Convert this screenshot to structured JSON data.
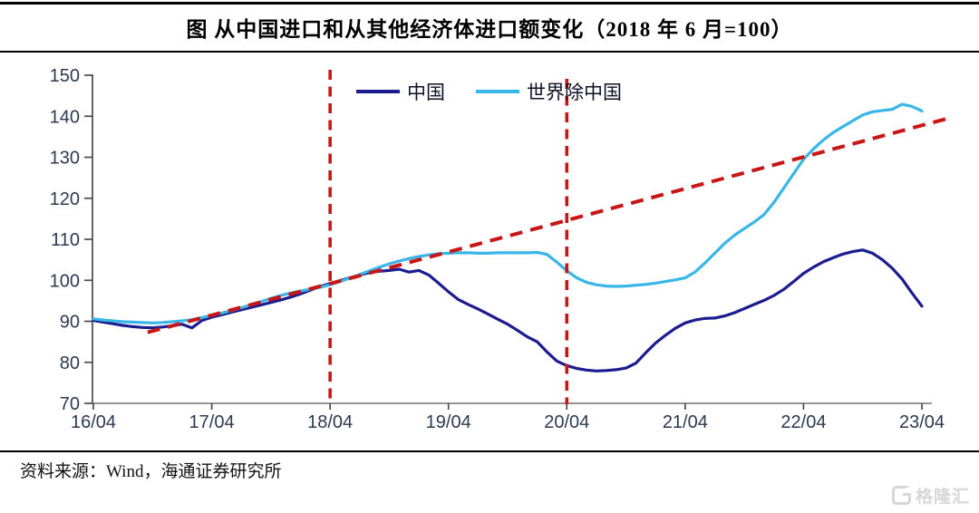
{
  "header": {
    "title": "图 从中国进口和从其他经济体进口额变化（2018 年 6 月=100）"
  },
  "legend": {
    "items": [
      {
        "label": "中国",
        "color": "#1c1c91"
      },
      {
        "label": "世界除中国",
        "color": "#38b6e8"
      }
    ]
  },
  "footer": {
    "source": "资料来源：Wind，海通证券研究所"
  },
  "logo": {
    "mark": "G",
    "text": "格隆汇"
  },
  "chart_data": {
    "type": "line",
    "title": "图 从中国进口和从从其他经济体进口额变化（2018 年 6 月=100）",
    "x_start": "2016/04",
    "x_end": "2023/04",
    "frequency": "monthly",
    "x_tick_labels": [
      "16/04",
      "17/04",
      "18/04",
      "19/04",
      "20/04",
      "21/04",
      "22/04",
      "23/04"
    ],
    "x_tick_indices": [
      0,
      12,
      24,
      36,
      48,
      60,
      72,
      84
    ],
    "y_ticks": [
      70,
      80,
      90,
      100,
      110,
      120,
      130,
      140,
      150
    ],
    "ylim": [
      70,
      150
    ],
    "grid": false,
    "legend_position": "top-center",
    "series": [
      {
        "name": "中国",
        "color": "#1c1c91",
        "values": [
          90.2,
          89.8,
          89.4,
          89.0,
          88.7,
          88.5,
          88.4,
          88.6,
          88.9,
          89.3,
          88.4,
          90.2,
          91.0,
          91.6,
          92.2,
          92.8,
          93.4,
          94.0,
          94.6,
          95.2,
          95.9,
          96.7,
          97.6,
          98.5,
          99.2,
          99.9,
          100.6,
          101.3,
          101.9,
          102.2,
          102.4,
          102.7,
          102.0,
          102.4,
          101.3,
          99.3,
          97.2,
          95.3,
          94.1,
          93.0,
          91.8,
          90.5,
          89.3,
          87.8,
          86.2,
          85.0,
          82.5,
          80.3,
          79.2,
          78.5,
          78.1,
          77.9,
          78.0,
          78.2,
          78.6,
          79.8,
          82.3,
          84.7,
          86.6,
          88.3,
          89.6,
          90.3,
          90.7,
          90.8,
          91.3,
          92.1,
          93.1,
          94.1,
          95.1,
          96.3,
          97.8,
          99.7,
          101.7,
          103.2,
          104.5,
          105.5,
          106.4,
          107.0,
          107.4,
          106.6,
          105.0,
          102.9,
          100.3,
          96.9,
          93.7
        ]
      },
      {
        "name": "世界除中国",
        "color": "#38b6e8",
        "values": [
          90.6,
          90.3,
          90.1,
          89.9,
          89.8,
          89.7,
          89.6,
          89.7,
          89.9,
          90.1,
          90.4,
          90.9,
          91.4,
          92.0,
          92.6,
          93.3,
          94.0,
          94.8,
          95.6,
          96.3,
          96.9,
          97.4,
          97.8,
          98.3,
          98.9,
          99.7,
          100.5,
          101.4,
          102.3,
          103.2,
          104.0,
          104.7,
          105.3,
          105.8,
          106.2,
          106.5,
          106.6,
          106.7,
          106.7,
          106.6,
          106.6,
          106.7,
          106.7,
          106.7,
          106.7,
          106.8,
          106.3,
          104.4,
          102.3,
          100.6,
          99.5,
          98.9,
          98.6,
          98.5,
          98.6,
          98.8,
          99.0,
          99.3,
          99.7,
          100.1,
          100.6,
          102.0,
          104.2,
          106.6,
          109.0,
          111.0,
          112.6,
          114.2,
          116.0,
          119.0,
          122.5,
          126.0,
          129.5,
          132.0,
          134.2,
          136.0,
          137.5,
          138.9,
          140.3,
          141.1,
          141.4,
          141.7,
          142.9,
          142.4,
          141.3
        ]
      }
    ],
    "trend_line": {
      "name": "linear-trend",
      "color": "#c81616",
      "style": "dashed",
      "start_month": "2016/09",
      "start_value": 87.3,
      "start_index": 5.5,
      "end_month": "2023/06",
      "end_value": 139.7,
      "end_index": 87.0
    },
    "vertical_markers": [
      {
        "month": "2018/04",
        "index": 24,
        "color": "#c81616",
        "style": "dashed"
      },
      {
        "month": "2020/04",
        "index": 48,
        "color": "#c81616",
        "style": "dashed"
      }
    ]
  }
}
